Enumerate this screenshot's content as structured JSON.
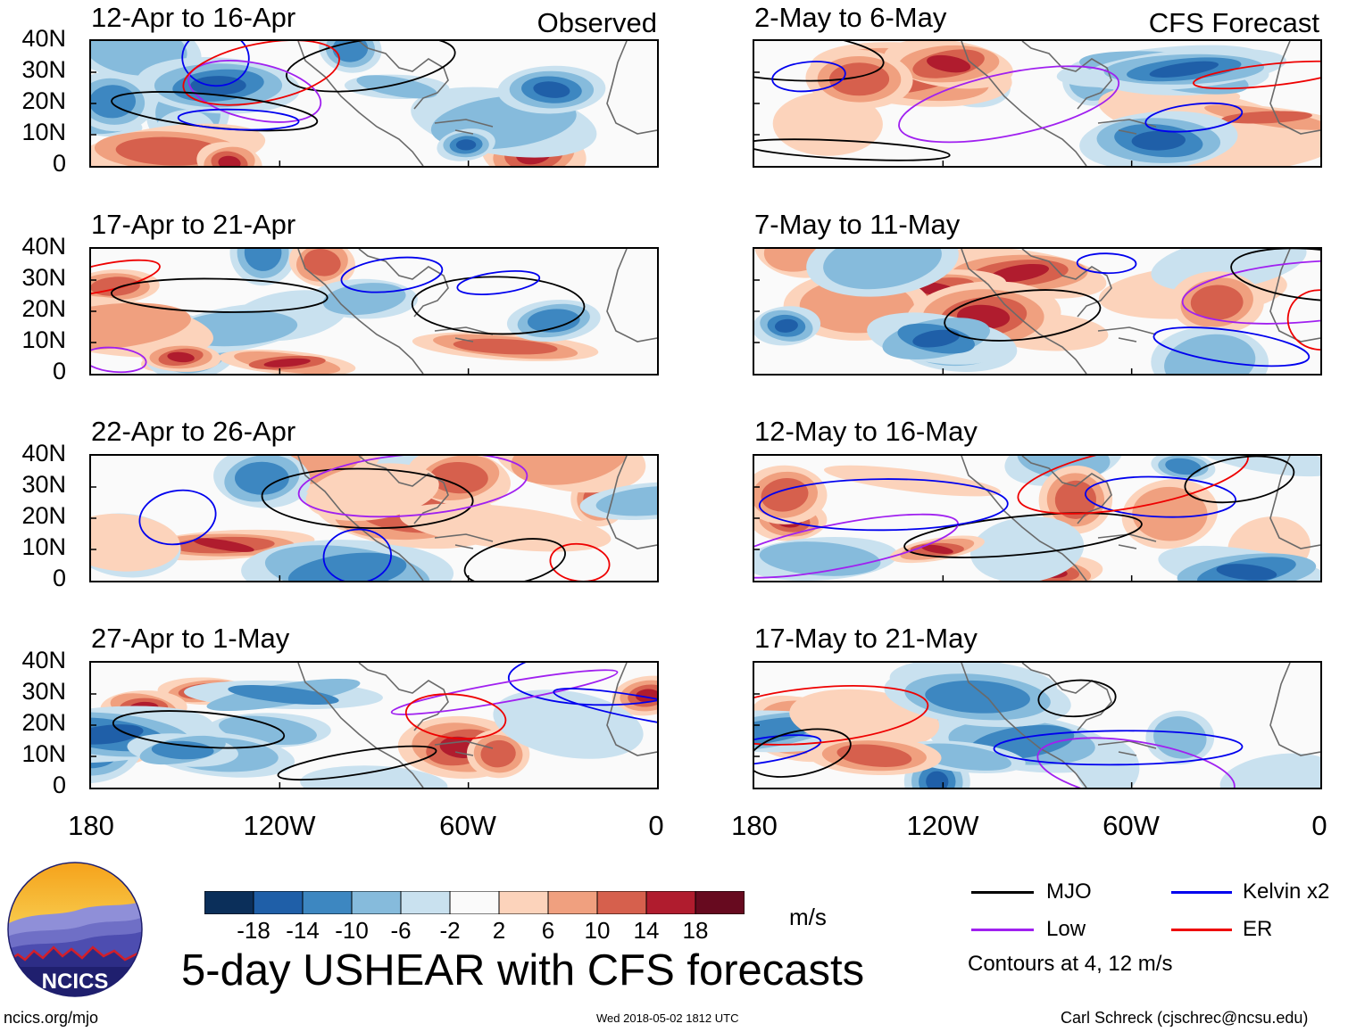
{
  "column_headers": {
    "left": "Observed",
    "right": "CFS Forecast"
  },
  "panels": [
    {
      "title": "12-Apr to 16-Apr"
    },
    {
      "title": "17-Apr to 21-Apr"
    },
    {
      "title": "22-Apr to 26-Apr"
    },
    {
      "title": "27-Apr to 1-May"
    },
    {
      "title": "2-May to 6-May"
    },
    {
      "title": "7-May to 11-May"
    },
    {
      "title": "12-May to 16-May"
    },
    {
      "title": "17-May to 21-May"
    }
  ],
  "lat_ticks": [
    "40N",
    "30N",
    "20N",
    "10N",
    "0"
  ],
  "lon_ticks": [
    "180",
    "120W",
    "60W",
    "0"
  ],
  "colorbar": {
    "labels": [
      "-18",
      "-14",
      "-10",
      "-6",
      "-2",
      "2",
      "6",
      "10",
      "14",
      "18"
    ],
    "colors": [
      "#0b2f5a",
      "#1f5fa8",
      "#3d87c1",
      "#86bbdc",
      "#c9e1ef",
      "#fafafa",
      "#fcd3bb",
      "#f0a07f",
      "#d6604d",
      "#b01c2e",
      "#670a1f"
    ],
    "units": "m/s"
  },
  "legend": {
    "items": [
      {
        "label": "MJO",
        "color": "#000000"
      },
      {
        "label": "Kelvin x2",
        "color": "#0000ee"
      },
      {
        "label": "Low",
        "color": "#a020f0"
      },
      {
        "label": "ER",
        "color": "#ee0000"
      }
    ],
    "note": "Contours at 4, 12 m/s"
  },
  "logo_text": "NCICS",
  "main_title": "5-day USHEAR with CFS forecasts",
  "footer": {
    "left": "ncics.org/mjo",
    "center": "Wed 2018-05-02 1812 UTC",
    "right": "Carl Schreck (cjschrec@ncsu.edu)"
  }
}
